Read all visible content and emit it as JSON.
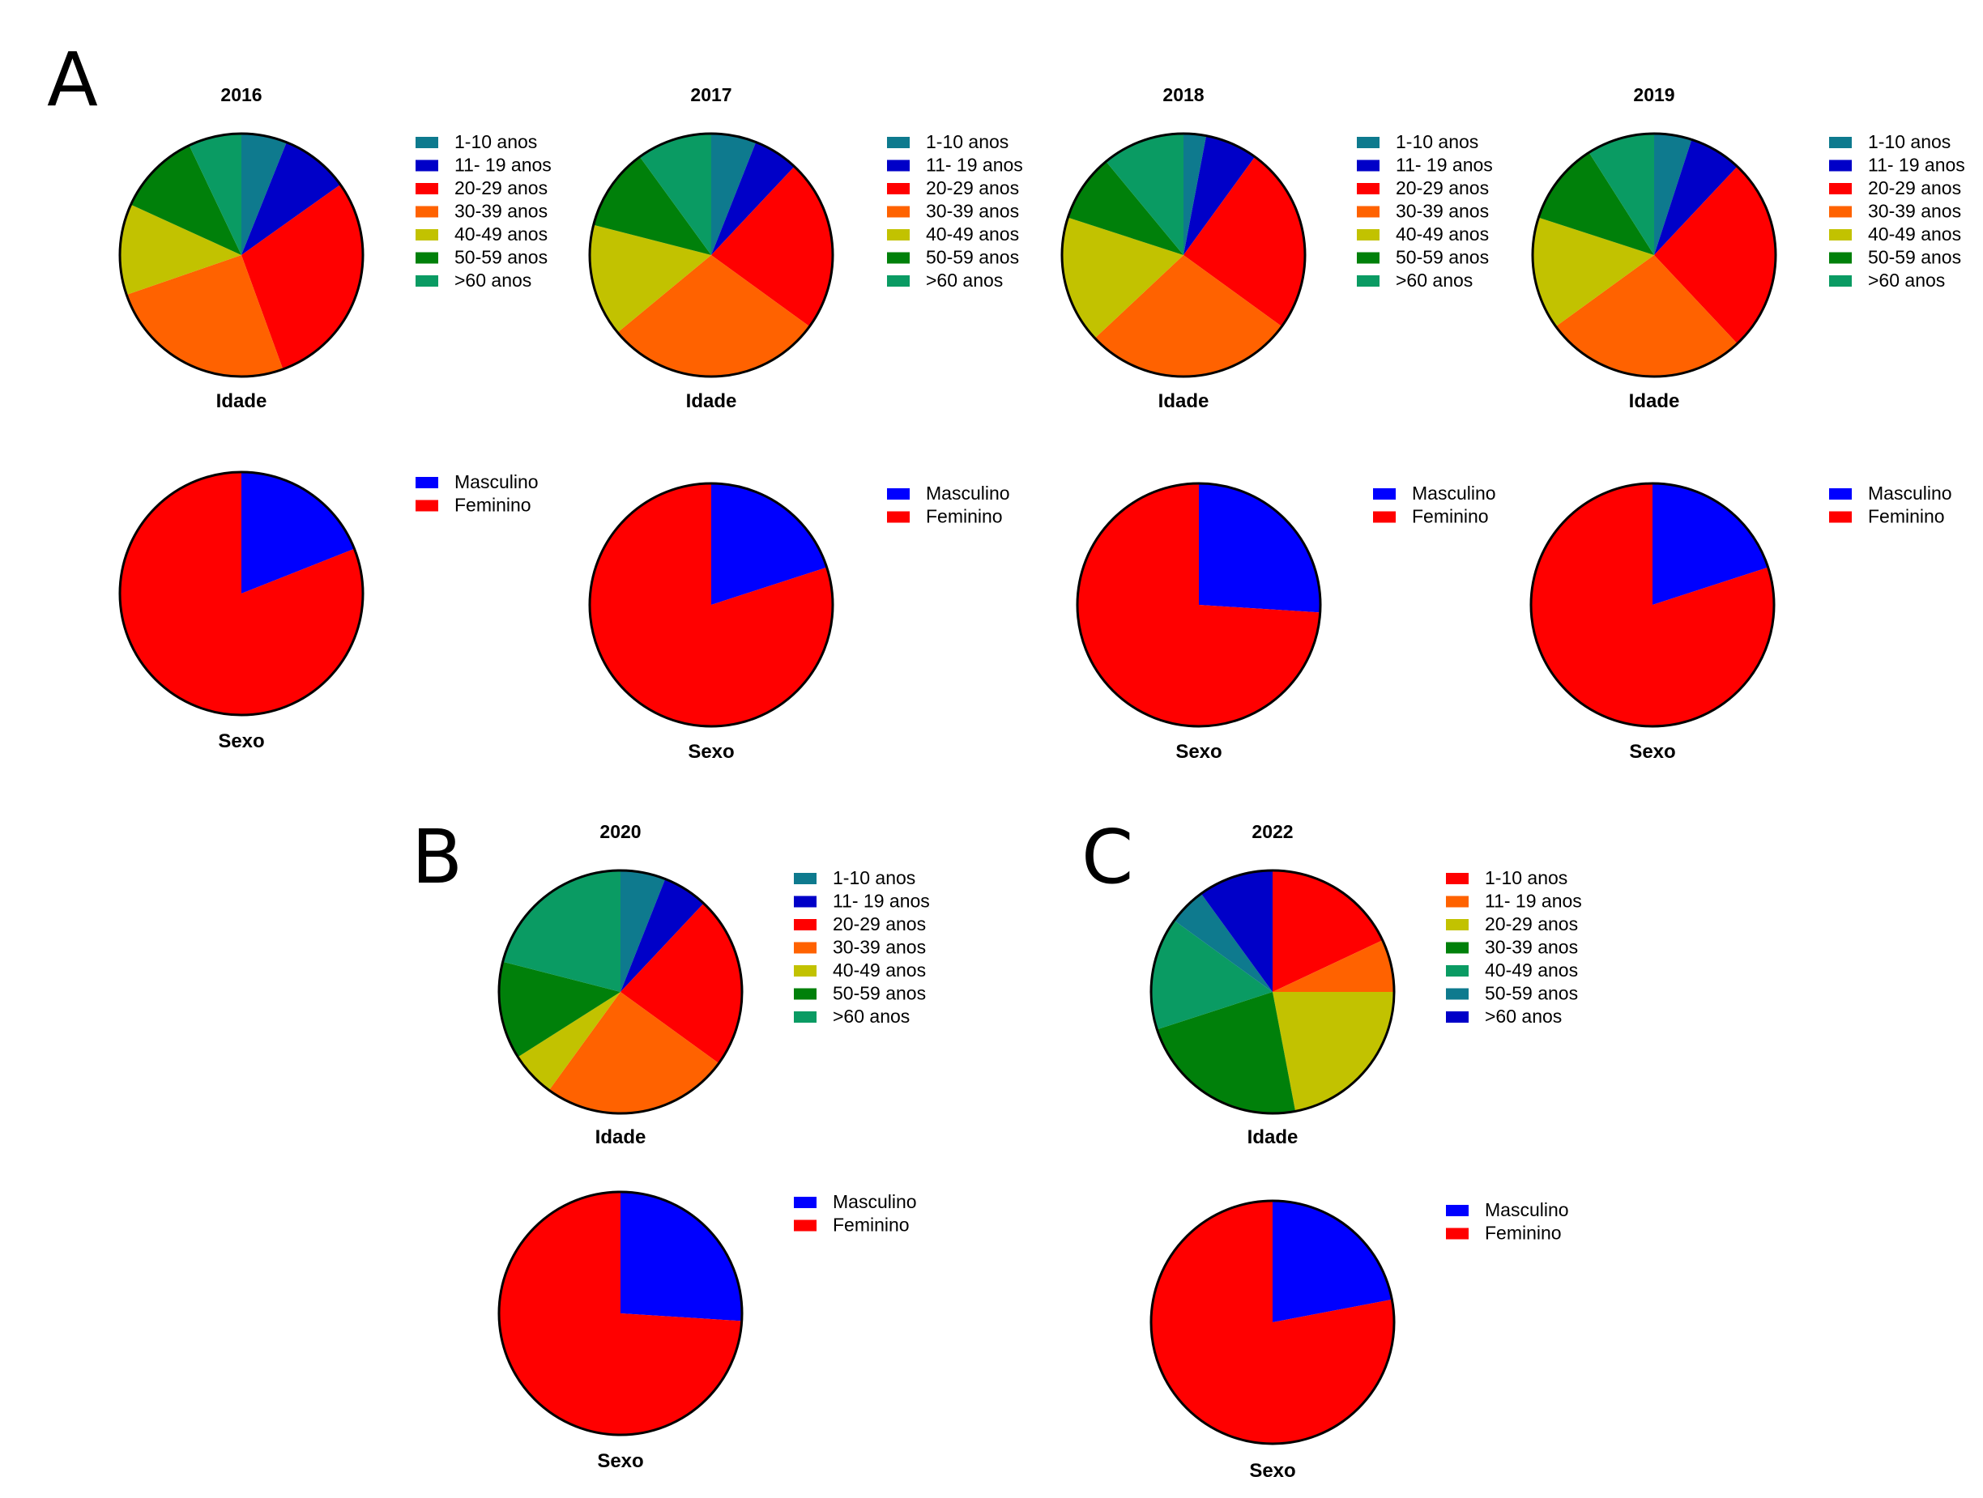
{
  "panels": [
    {
      "letter": "A"
    },
    {
      "letter": "B"
    },
    {
      "letter": "C"
    }
  ],
  "chart_data": [
    {
      "type": "pie",
      "panel": "A",
      "title": "2016",
      "xlabel": "Idade",
      "categories": [
        "1-10 anos",
        "11- 19 anos",
        "20-29 anos",
        "30-39 anos",
        "40-49 anos",
        "50-59 anos",
        ">60 anos"
      ],
      "colors": [
        "#0e7a8e",
        "#0000c8",
        "#ff0000",
        "#ff6200",
        "#c2c200",
        "#00800a",
        "#0a9b63"
      ],
      "values": [
        6,
        9,
        29,
        25,
        12,
        11,
        7
      ],
      "legend_position": "right"
    },
    {
      "type": "pie",
      "panel": "A",
      "title": "2016",
      "xlabel": "Sexo",
      "categories": [
        "Masculino",
        "Feminino"
      ],
      "colors": [
        "#0000ff",
        "#ff0000"
      ],
      "values": [
        19,
        81
      ],
      "legend_position": "right"
    },
    {
      "type": "pie",
      "panel": "A",
      "title": "2017",
      "xlabel": "Idade",
      "categories": [
        "1-10 anos",
        "11- 19 anos",
        "20-29 anos",
        "30-39 anos",
        "40-49 anos",
        "50-59 anos",
        ">60 anos"
      ],
      "colors": [
        "#0e7a8e",
        "#0000c8",
        "#ff0000",
        "#ff6200",
        "#c2c200",
        "#00800a",
        "#0a9b63"
      ],
      "values": [
        6,
        6,
        23,
        29,
        15,
        11,
        10
      ],
      "legend_position": "right"
    },
    {
      "type": "pie",
      "panel": "A",
      "title": "2017",
      "xlabel": "Sexo",
      "categories": [
        "Masculino",
        "Feminino"
      ],
      "colors": [
        "#0000ff",
        "#ff0000"
      ],
      "values": [
        20,
        80
      ],
      "legend_position": "right"
    },
    {
      "type": "pie",
      "panel": "A",
      "title": "2018",
      "xlabel": "Idade",
      "categories": [
        "1-10 anos",
        "11- 19 anos",
        "20-29 anos",
        "30-39 anos",
        "40-49 anos",
        "50-59 anos",
        ">60 anos"
      ],
      "colors": [
        "#0e7a8e",
        "#0000c8",
        "#ff0000",
        "#ff6200",
        "#c2c200",
        "#00800a",
        "#0a9b63"
      ],
      "values": [
        3,
        7,
        25,
        28,
        17,
        9,
        11
      ],
      "legend_position": "right"
    },
    {
      "type": "pie",
      "panel": "A",
      "title": "2018",
      "xlabel": "Sexo",
      "categories": [
        "Masculino",
        "Feminino"
      ],
      "colors": [
        "#0000ff",
        "#ff0000"
      ],
      "values": [
        26,
        74
      ],
      "legend_position": "right"
    },
    {
      "type": "pie",
      "panel": "A",
      "title": "2019",
      "xlabel": "Idade",
      "categories": [
        "1-10 anos",
        "11- 19 anos",
        "20-29 anos",
        "30-39 anos",
        "40-49 anos",
        "50-59 anos",
        ">60 anos"
      ],
      "colors": [
        "#0e7a8e",
        "#0000c8",
        "#ff0000",
        "#ff6200",
        "#c2c200",
        "#00800a",
        "#0a9b63"
      ],
      "values": [
        5,
        7,
        26,
        27,
        15,
        11,
        9
      ],
      "legend_position": "right"
    },
    {
      "type": "pie",
      "panel": "A",
      "title": "2019",
      "xlabel": "Sexo",
      "categories": [
        "Masculino",
        "Feminino"
      ],
      "colors": [
        "#0000ff",
        "#ff0000"
      ],
      "values": [
        20,
        80
      ],
      "legend_position": "right"
    },
    {
      "type": "pie",
      "panel": "B",
      "title": "2020",
      "xlabel": "Idade",
      "categories": [
        "1-10 anos",
        "11- 19 anos",
        "20-29 anos",
        "30-39 anos",
        "40-49 anos",
        "50-59 anos",
        ">60 anos"
      ],
      "colors": [
        "#0e7a8e",
        "#0000c8",
        "#ff0000",
        "#ff6200",
        "#c2c200",
        "#00800a",
        "#0a9b63"
      ],
      "values": [
        6,
        6,
        23,
        25,
        6,
        13,
        21
      ],
      "legend_position": "right"
    },
    {
      "type": "pie",
      "panel": "B",
      "title": "2020",
      "xlabel": "Sexo",
      "categories": [
        "Masculino",
        "Feminino"
      ],
      "colors": [
        "#0000ff",
        "#ff0000"
      ],
      "values": [
        26,
        74
      ],
      "legend_position": "right"
    },
    {
      "type": "pie",
      "panel": "C",
      "title": "2022",
      "xlabel": "Idade",
      "categories": [
        "1-10 anos",
        "11- 19 anos",
        "20-29 anos",
        "30-39 anos",
        "40-49 anos",
        "50-59 anos",
        ">60 anos"
      ],
      "colors": [
        "#ff0000",
        "#ff6200",
        "#c2c200",
        "#00800a",
        "#0a9b63",
        "#0e7a8e",
        "#0000c8"
      ],
      "values": [
        18,
        7,
        22,
        23,
        15,
        5,
        10
      ],
      "legend_position": "right"
    },
    {
      "type": "pie",
      "panel": "C",
      "title": "2022",
      "xlabel": "Sexo",
      "categories": [
        "Masculino",
        "Feminino"
      ],
      "colors": [
        "#0000ff",
        "#ff0000"
      ],
      "values": [
        22,
        78
      ],
      "legend_position": "right"
    }
  ]
}
